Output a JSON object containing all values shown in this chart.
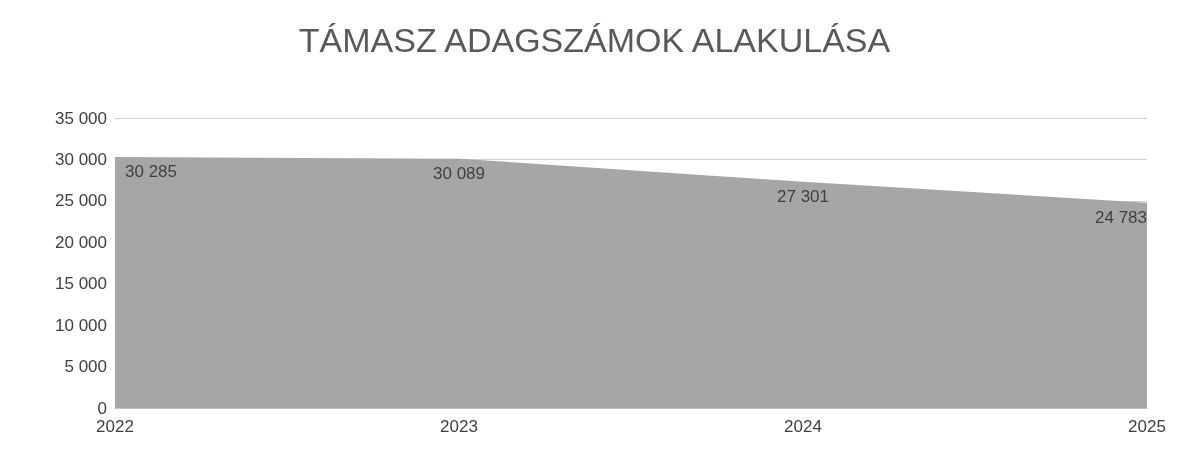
{
  "chart_data": {
    "type": "area",
    "title": "TÁMASZ ADAGSZÁMOK ALAKULÁSA",
    "categories": [
      "2022",
      "2023",
      "2024",
      "2025"
    ],
    "series": [
      {
        "color": "#a6a6a6",
        "values": [
          30285,
          30089,
          27301,
          24783
        ],
        "value_labels": [
          "30 285",
          "30 089",
          "27 301",
          "24 783"
        ]
      }
    ],
    "ylim": [
      0,
      35000
    ],
    "yticks": [
      {
        "value": 0,
        "label": "0"
      },
      {
        "value": 5000,
        "label": "5 000"
      },
      {
        "value": 10000,
        "label": "10 000"
      },
      {
        "value": 15000,
        "label": "15 000"
      },
      {
        "value": 20000,
        "label": "20 000"
      },
      {
        "value": 25000,
        "label": "25 000"
      },
      {
        "value": 30000,
        "label": "30 000"
      },
      {
        "value": 35000,
        "label": "35 000"
      }
    ],
    "grid": "y",
    "marker": "none"
  }
}
